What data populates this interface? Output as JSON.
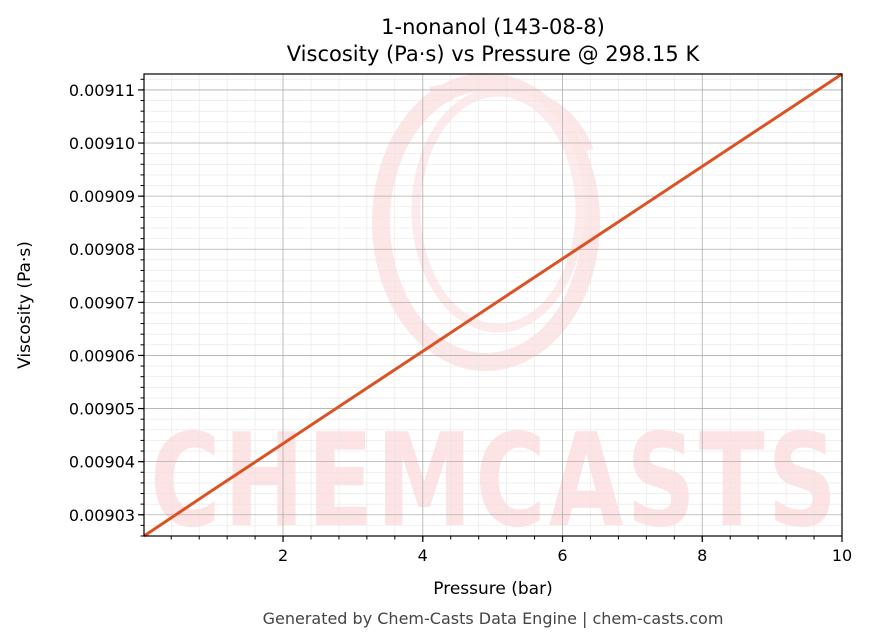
{
  "chart_data": {
    "type": "line",
    "title_line1": "1-nonanol (143-08-8)",
    "title_line2": "Viscosity (Pa·s) vs Pressure @ 298.15 K",
    "xlabel": "Pressure (bar)",
    "ylabel": "Viscosity (Pa·s)",
    "xlim": [
      0.01,
      10
    ],
    "ylim": [
      0.009026,
      0.009113
    ],
    "x_ticks": [
      2,
      4,
      6,
      8,
      10
    ],
    "x_tick_labels": [
      "2",
      "4",
      "6",
      "8",
      "10"
    ],
    "y_ticks": [
      0.00903,
      0.00904,
      0.00905,
      0.00906,
      0.00907,
      0.00908,
      0.00909,
      0.0091,
      0.00911
    ],
    "y_tick_labels": [
      "0.00903",
      "0.00904",
      "0.00905",
      "0.00906",
      "0.00907",
      "0.00908",
      "0.00909",
      "0.00910",
      "0.00911"
    ],
    "grid": true,
    "series": [
      {
        "color": "#d95324",
        "x": [
          0.01,
          1,
          2,
          3,
          4,
          5,
          6,
          7,
          8,
          9,
          10
        ],
        "y": [
          0.009026,
          0.0090347,
          0.0090434,
          0.0090521,
          0.0090608,
          0.0090695,
          0.0090782,
          0.0090869,
          0.0090956,
          0.0091043,
          0.009113
        ]
      }
    ]
  },
  "watermark": {
    "text": "CHEMCASTS",
    "color": "#fde3e3"
  },
  "footer": "Generated by Chem-Casts Data Engine | chem-casts.com"
}
